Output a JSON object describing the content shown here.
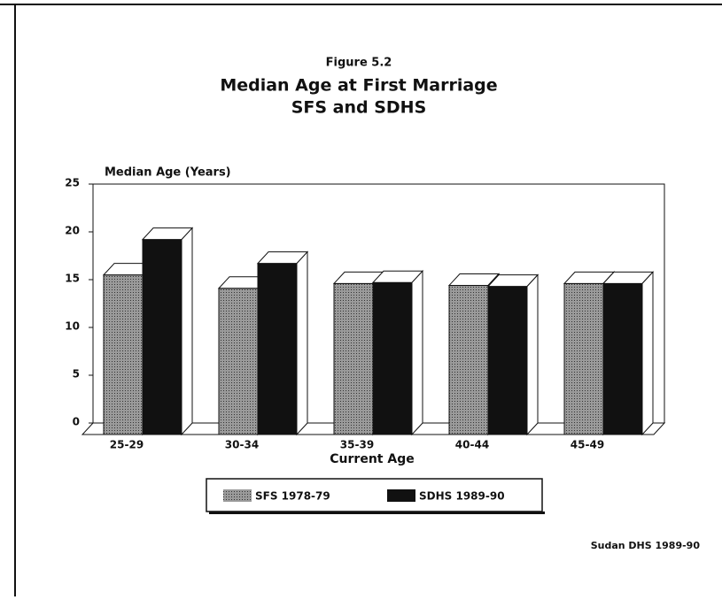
{
  "chart_data": {
    "type": "bar3d",
    "supertitle": "Figure 5.2",
    "title": "Median Age at First Marriage",
    "subtitle": "SFS and SDHS",
    "ylabel": "Median Age (Years)",
    "xlabel": "Current Age",
    "source": "Sudan DHS 1989-90",
    "categories": [
      "25-29",
      "30-34",
      "35-39",
      "40-44",
      "45-49"
    ],
    "series": [
      {
        "name": "SFS 1978-79",
        "color": "#9a9a9a",
        "values": [
          16.7,
          15.3,
          15.8,
          15.6,
          15.8
        ]
      },
      {
        "name": "SDHS 1989-90",
        "color": "#111111",
        "values": [
          20.4,
          17.9,
          15.9,
          15.5,
          15.8
        ]
      }
    ],
    "ylim": [
      0,
      25
    ],
    "yticks": [
      0,
      5,
      10,
      15,
      20,
      25
    ],
    "legend": "bottom"
  }
}
